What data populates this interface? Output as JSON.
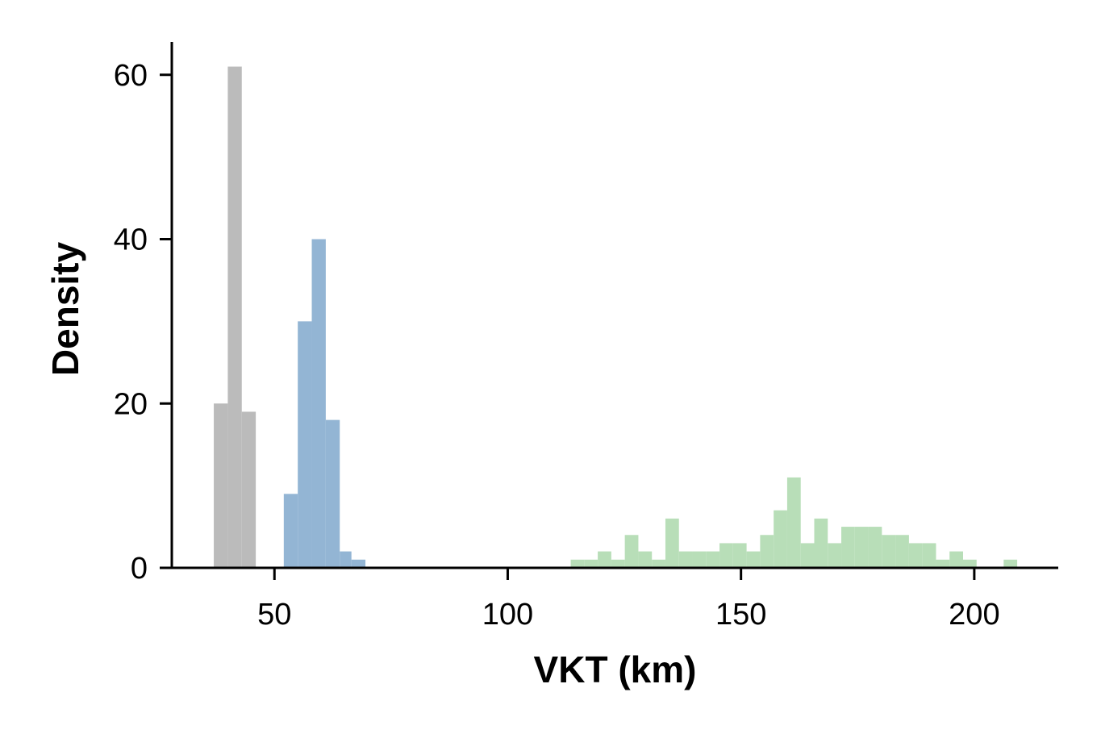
{
  "chart_data": {
    "type": "bar",
    "title": "",
    "xlabel": "VKT (km)",
    "ylabel": "Density",
    "xlim": [
      28,
      218
    ],
    "ylim": [
      0,
      64
    ],
    "xticks": [
      50,
      100,
      150,
      200
    ],
    "yticks": [
      0,
      20,
      40,
      60
    ],
    "grid": false,
    "legend": null,
    "series": [
      {
        "color": "#bbbbbb",
        "bins": [
          {
            "x0": 37.0,
            "x1": 40.0,
            "value": 20
          },
          {
            "x0": 40.0,
            "x1": 43.0,
            "value": 61
          },
          {
            "x0": 43.0,
            "x1": 46.0,
            "value": 19
          }
        ]
      },
      {
        "color": "#93b5d4",
        "bins": [
          {
            "x0": 52.0,
            "x1": 55.0,
            "value": 9
          },
          {
            "x0": 55.0,
            "x1": 58.0,
            "value": 30
          },
          {
            "x0": 58.0,
            "x1": 61.0,
            "value": 40
          },
          {
            "x0": 61.0,
            "x1": 64.0,
            "value": 18
          },
          {
            "x0": 64.0,
            "x1": 66.5,
            "value": 2
          },
          {
            "x0": 66.5,
            "x1": 69.5,
            "value": 1
          }
        ]
      },
      {
        "color": "#b8deb8",
        "bins": [
          {
            "x0": 113.5,
            "x1": 116.4,
            "value": 1
          },
          {
            "x0": 116.4,
            "x1": 119.3,
            "value": 1
          },
          {
            "x0": 119.3,
            "x1": 122.2,
            "value": 2
          },
          {
            "x0": 122.2,
            "x1": 125.1,
            "value": 1
          },
          {
            "x0": 125.1,
            "x1": 128.0,
            "value": 4
          },
          {
            "x0": 128.0,
            "x1": 130.9,
            "value": 2
          },
          {
            "x0": 130.9,
            "x1": 133.8,
            "value": 1
          },
          {
            "x0": 133.8,
            "x1": 136.7,
            "value": 6
          },
          {
            "x0": 136.7,
            "x1": 139.6,
            "value": 2
          },
          {
            "x0": 139.6,
            "x1": 142.5,
            "value": 2
          },
          {
            "x0": 142.5,
            "x1": 145.4,
            "value": 2
          },
          {
            "x0": 145.4,
            "x1": 148.3,
            "value": 3
          },
          {
            "x0": 148.3,
            "x1": 151.2,
            "value": 3
          },
          {
            "x0": 151.2,
            "x1": 154.1,
            "value": 2
          },
          {
            "x0": 154.1,
            "x1": 157.0,
            "value": 4
          },
          {
            "x0": 157.0,
            "x1": 159.9,
            "value": 7
          },
          {
            "x0": 159.9,
            "x1": 162.8,
            "value": 11
          },
          {
            "x0": 162.8,
            "x1": 165.7,
            "value": 3
          },
          {
            "x0": 165.7,
            "x1": 168.6,
            "value": 6
          },
          {
            "x0": 168.6,
            "x1": 171.5,
            "value": 3
          },
          {
            "x0": 171.5,
            "x1": 174.4,
            "value": 5
          },
          {
            "x0": 174.4,
            "x1": 177.3,
            "value": 5
          },
          {
            "x0": 177.3,
            "x1": 180.2,
            "value": 5
          },
          {
            "x0": 180.2,
            "x1": 183.1,
            "value": 4
          },
          {
            "x0": 183.1,
            "x1": 186.0,
            "value": 4
          },
          {
            "x0": 186.0,
            "x1": 188.9,
            "value": 3
          },
          {
            "x0": 188.9,
            "x1": 191.8,
            "value": 3
          },
          {
            "x0": 191.8,
            "x1": 194.7,
            "value": 1
          },
          {
            "x0": 194.7,
            "x1": 197.6,
            "value": 2
          },
          {
            "x0": 197.6,
            "x1": 200.5,
            "value": 1
          },
          {
            "x0": 200.5,
            "x1": 203.4,
            "value": 0
          },
          {
            "x0": 203.4,
            "x1": 206.3,
            "value": 0
          },
          {
            "x0": 206.3,
            "x1": 209.2,
            "value": 1
          }
        ]
      }
    ]
  }
}
